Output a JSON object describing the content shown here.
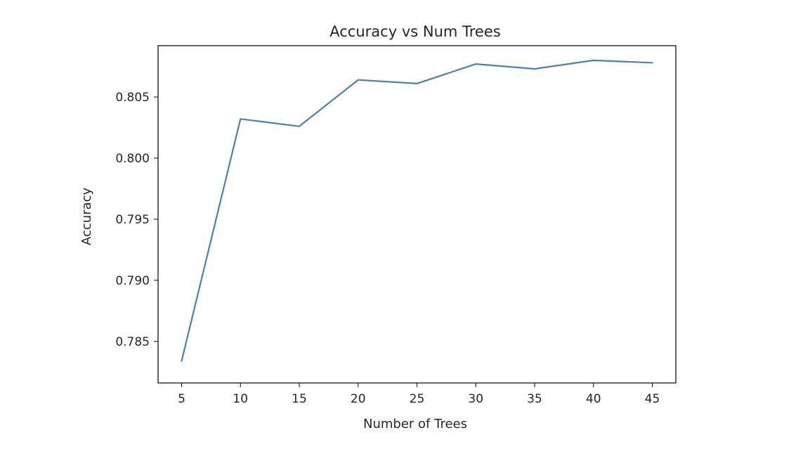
{
  "chart_data": {
    "type": "line",
    "title": "Accuracy vs Num Trees",
    "xlabel": "Number of Trees",
    "ylabel": "Accuracy",
    "x": [
      5,
      10,
      15,
      20,
      25,
      30,
      35,
      40,
      45
    ],
    "series": [
      {
        "values": [
          0.7834,
          0.8032,
          0.8026,
          0.8064,
          0.8061,
          0.8077,
          0.8073,
          0.808,
          0.8078
        ],
        "color": "#4682b4"
      }
    ],
    "xlim": [
      3.0,
      47.0
    ],
    "ylim": [
      0.7816,
      0.8092
    ],
    "xticks": [
      5,
      10,
      15,
      20,
      25,
      30,
      35,
      40,
      45
    ],
    "xtick_labels": [
      "5",
      "10",
      "15",
      "20",
      "25",
      "30",
      "35",
      "40",
      "45"
    ],
    "yticks": [
      0.785,
      0.79,
      0.795,
      0.8,
      0.805
    ],
    "ytick_labels": [
      "0.785",
      "0.790",
      "0.795",
      "0.800",
      "0.805"
    ],
    "grid": false,
    "legend": false
  }
}
